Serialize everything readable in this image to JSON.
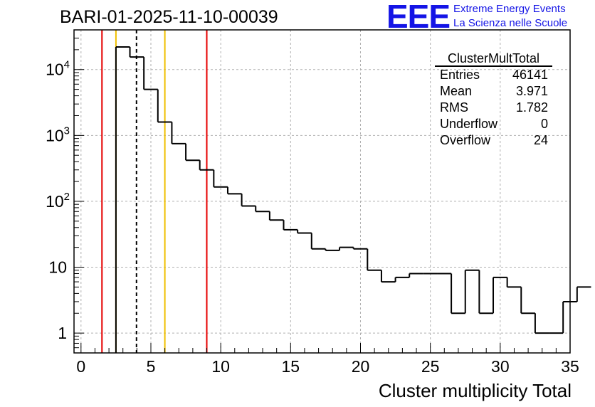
{
  "title": "BARI-01-2025-11-10-00039",
  "logo": {
    "mark": "EEE",
    "line1": "Extreme Energy Events",
    "line2": "La Scienza nelle Scuole"
  },
  "stats": {
    "name": "ClusterMultTotal",
    "rows": [
      {
        "label": "Entries",
        "value": "46141"
      },
      {
        "label": "Mean",
        "value": "3.971"
      },
      {
        "label": "RMS",
        "value": "1.782"
      },
      {
        "label": "Underflow",
        "value": "0"
      },
      {
        "label": "Overflow",
        "value": "24"
      }
    ]
  },
  "chart_data": {
    "type": "histogram",
    "title": "BARI-01-2025-11-10-00039",
    "xlabel": "Cluster multiplicity Total",
    "ylabel": "",
    "xlim": [
      0,
      35
    ],
    "yscale": "log",
    "ylim": [
      0.5,
      40000
    ],
    "grid": true,
    "bin_width": 1,
    "bin_edges_start": 2.5,
    "values": [
      22000,
      15500,
      5000,
      1600,
      750,
      420,
      300,
      165,
      130,
      85,
      70,
      52,
      37,
      33,
      19,
      18,
      20,
      19,
      9,
      6,
      7,
      8,
      8,
      8,
      2,
      9,
      2,
      7,
      5,
      2,
      1,
      1,
      3,
      5
    ],
    "xticks": [
      0,
      5,
      10,
      15,
      20,
      25,
      30,
      35
    ],
    "yticks": [
      {
        "value": 1,
        "label": "1"
      },
      {
        "value": 10,
        "label": "10"
      },
      {
        "value": 100,
        "label": "10",
        "exp": "2"
      },
      {
        "value": 1000,
        "label": "10",
        "exp": "3"
      },
      {
        "value": 10000,
        "label": "10",
        "exp": "4"
      }
    ],
    "vertical_lines": [
      {
        "x": 1.5,
        "color": "#e60000",
        "style": "solid"
      },
      {
        "x": 2.5,
        "color": "#f0c000",
        "style": "solid"
      },
      {
        "x": 3.971,
        "color": "#000000",
        "style": "dashed"
      },
      {
        "x": 6.0,
        "color": "#f0c000",
        "style": "solid"
      },
      {
        "x": 9.0,
        "color": "#e60000",
        "style": "solid"
      }
    ]
  }
}
